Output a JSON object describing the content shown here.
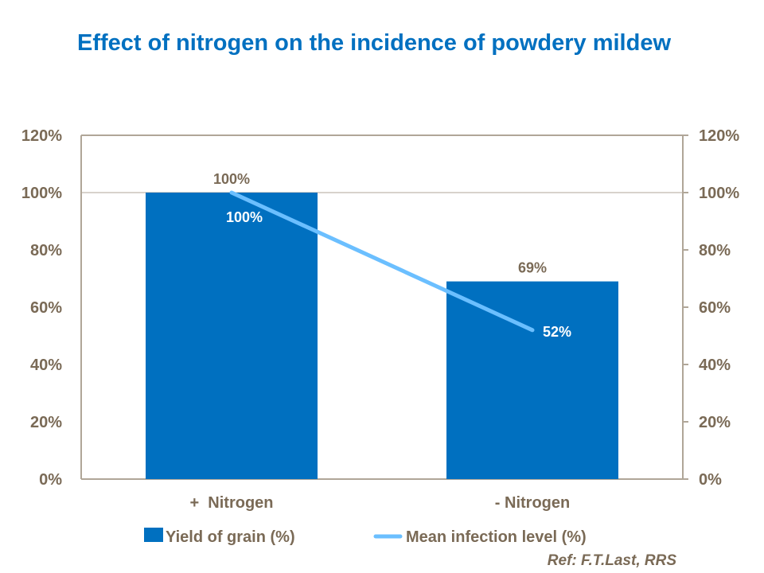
{
  "title": "Effect of nitrogen on the incidence of powdery mildew",
  "reference": "Ref: F.T.Last, RRS",
  "colors": {
    "bar": "#0070C0",
    "line": "#6BBFFF",
    "text": "#7A6A56",
    "axis": "#B0A698",
    "title": "#0070C0"
  },
  "chart_data": {
    "type": "bar+line",
    "title": "Effect of nitrogen on the incidence of powdery mildew",
    "categories": [
      "+  Nitrogen",
      "- Nitrogen"
    ],
    "series": [
      {
        "name": "Yield of grain (%)",
        "type": "bar",
        "axis": "left",
        "values": [
          100,
          69
        ],
        "labels": [
          "100%",
          "69%"
        ]
      },
      {
        "name": "Mean infection level (%)",
        "type": "line",
        "axis": "right",
        "values": [
          100,
          52
        ],
        "labels": [
          "100%",
          "52%"
        ]
      }
    ],
    "ylim": [
      0,
      120
    ],
    "y2lim": [
      0,
      120
    ],
    "yticks": [
      "0%",
      "20%",
      "40%",
      "60%",
      "80%",
      "100%",
      "120%"
    ],
    "y2ticks": [
      "0%",
      "20%",
      "40%",
      "60%",
      "80%",
      "100%",
      "120%"
    ],
    "legend": "bottom",
    "grid": false
  }
}
